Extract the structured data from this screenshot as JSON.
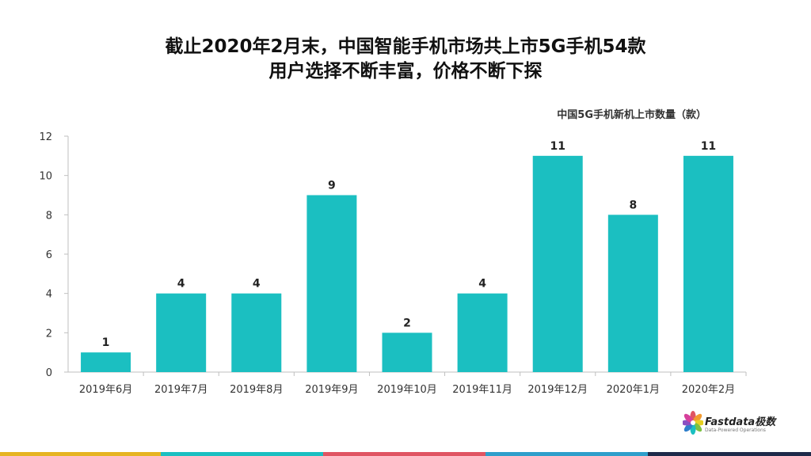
{
  "title": {
    "line1": "截止2020年2月末，中国智能手机市场共上市5G手机54款",
    "line2": "用户选择不断丰富，价格不断下探"
  },
  "chart_data": {
    "type": "bar",
    "title": "中国5G手机新机上市数量（款）",
    "categories": [
      "2019年6月",
      "2019年7月",
      "2019年8月",
      "2019年9月",
      "2019年10月",
      "2019年11月",
      "2019年12月",
      "2020年1月",
      "2020年2月"
    ],
    "values": [
      1,
      4,
      4,
      9,
      2,
      4,
      11,
      8,
      11
    ],
    "ylim": [
      0,
      12
    ],
    "yticks": [
      0,
      2,
      4,
      6,
      8,
      10,
      12
    ],
    "grid": false,
    "bar_color": "#1bbfc1",
    "data_labels": true
  },
  "logo": {
    "name": "Fastdata极数",
    "tagline": "Data-Powered Operations"
  },
  "colors": {
    "footer": [
      "#e6b422",
      "#1bbfc1",
      "#e05563",
      "#2f9fcb",
      "#1e2a4a"
    ]
  }
}
